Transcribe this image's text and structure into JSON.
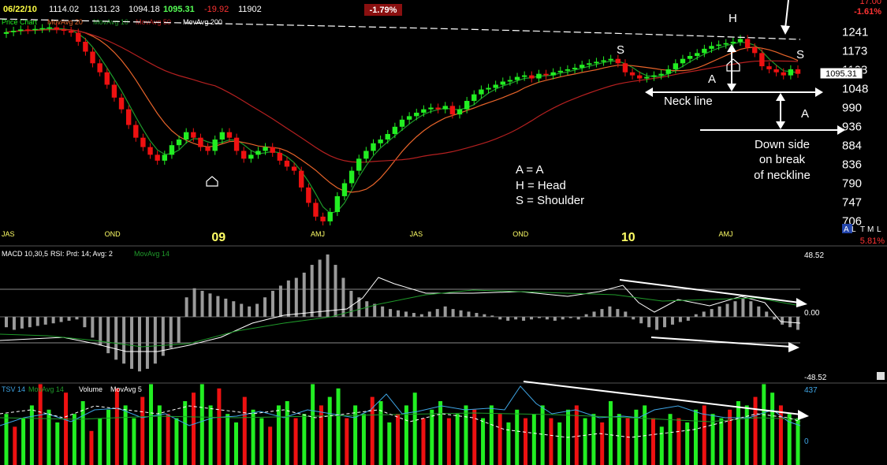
{
  "header": {
    "date": "06/22/10",
    "open": "1114.02",
    "high": "1131.23",
    "low": "1094.18",
    "close": "1095.31",
    "change": "-19.92",
    "volume": "11902",
    "change_pct_badge": "-1.79%",
    "right_top_value": "-1.61%",
    "right_top_clipped": "17.00"
  },
  "price_panel": {
    "legend_prefix": "Price Chart",
    "legend_ma20": "MovAvg 20",
    "legend_ma10": "MovAvg 10",
    "legend_ma50": "MovAvg 50",
    "legend_ma200": "MovAvg 200",
    "last_price_tag": "1095.31",
    "axis_ticks": [
      "1241",
      "1173",
      "1108",
      "1048",
      "990",
      "936",
      "884",
      "836",
      "790",
      "747",
      "706"
    ],
    "x_labels": [
      "JAS",
      "OND",
      "09",
      "AMJ",
      "JAS",
      "OND",
      "10",
      "AMJ"
    ],
    "range_buttons": [
      "A",
      "L",
      "T",
      "M",
      "L"
    ],
    "right_pct": "5.81%",
    "annotations": {
      "s_left": "S",
      "head": "H",
      "s_right": "S",
      "a_left": "A",
      "a_right": "A",
      "neck_line": "Neck line",
      "downside_1": "Down side",
      "downside_2": "on break",
      "downside_3": "of neckline",
      "legend_a": "A = A",
      "legend_h": "H = Head",
      "legend_s": "S = Shoulder"
    }
  },
  "macd_panel": {
    "label_macd": "MACD 10,30,5",
    "label_rsi": "RSI: Prd: 14; Avg: 2",
    "label_ma": "MovAvg 14",
    "axis_top": "48.52",
    "axis_mid": "0.00",
    "axis_bottom": "-48.52"
  },
  "tsv_panel": {
    "label_tsv": "TSV 14",
    "label_ma": "MovAvg 14",
    "label_vol": "Volume",
    "label_vol_ma": "MovAvg 5",
    "axis_top": "437",
    "axis_zero": "0"
  },
  "colors": {
    "up": "#22ee22",
    "down": "#ee1111",
    "ma_green": "#1f9a2a",
    "ma_orange": "#e8642a",
    "ma_red": "#b52020",
    "white": "#ffffff",
    "grey_bar": "#9a9a9a",
    "tsv_cyan": "#3fa6e6",
    "accent_yellow": "#ffff44",
    "accent_green": "#55ff55",
    "badge_bg": "#8a1010"
  },
  "chart_data": [
    {
      "type": "candlestick",
      "title": "",
      "x_ticks": [
        "JAS",
        "OND",
        "09",
        "AMJ",
        "JAS",
        "OND",
        "10",
        "AMJ"
      ],
      "ylim": [
        690,
        1290
      ],
      "y_scale": "log",
      "grid": false,
      "close_series": [
        1240,
        1245,
        1250,
        1248,
        1252,
        1255,
        1258,
        1250,
        1245,
        1238,
        1205,
        1170,
        1130,
        1100,
        1060,
        1020,
        985,
        940,
        905,
        880,
        860,
        845,
        860,
        885,
        900,
        920,
        905,
        880,
        870,
        900,
        920,
        905,
        870,
        850,
        860,
        870,
        880,
        865,
        845,
        830,
        820,
        780,
        745,
        715,
        705,
        725,
        760,
        790,
        820,
        850,
        870,
        890,
        900,
        915,
        935,
        955,
        965,
        975,
        985,
        990,
        985,
        995,
        970,
        985,
        1010,
        1030,
        1045,
        1050,
        1060,
        1070,
        1075,
        1085,
        1090,
        1080,
        1095,
        1090,
        1100,
        1105,
        1110,
        1115,
        1125,
        1130,
        1135,
        1140,
        1145,
        1130,
        1100,
        1090,
        1080,
        1085,
        1090,
        1095,
        1110,
        1130,
        1145,
        1155,
        1165,
        1180,
        1190,
        1195,
        1200,
        1205,
        1215,
        1185,
        1165,
        1120,
        1110,
        1100,
        1090,
        1110,
        1095
      ]
    },
    {
      "type": "bar",
      "title": "",
      "ylim": [
        -48.52,
        48.52
      ],
      "series": [
        {
          "name": "MACD 10,30,5",
          "values": [
            -8,
            -10,
            -9,
            -8,
            -7,
            -6,
            -5,
            -4,
            -3,
            -2,
            -8,
            -16,
            -22,
            -28,
            -33,
            -36,
            -40,
            -42,
            -40,
            -36,
            -30,
            -24,
            -20,
            15,
            22,
            20,
            18,
            16,
            14,
            12,
            10,
            8,
            10,
            15,
            20,
            24,
            28,
            30,
            34,
            40,
            44,
            48,
            40,
            30,
            20,
            15,
            12,
            10,
            8,
            6,
            5,
            4,
            3,
            2,
            4,
            6,
            8,
            6,
            5,
            4,
            3,
            2,
            1,
            -2,
            -3,
            -2,
            -3,
            -2,
            -1,
            -2,
            -3,
            -2,
            -1,
            -2,
            2,
            4,
            6,
            8,
            6,
            4,
            -2,
            -5,
            -8,
            -10,
            -8,
            -6,
            -4,
            -3,
            2,
            4,
            6,
            8,
            10,
            12,
            14,
            12,
            8,
            4,
            -2,
            -6,
            -8,
            -10
          ]
        }
      ]
    },
    {
      "type": "bar",
      "title": "",
      "ylim": [
        0,
        437
      ],
      "series": [
        {
          "name": "Volume",
          "values": [
            60,
            45,
            55,
            70,
            95,
            65,
            50,
            85,
            60,
            75,
            40,
            55,
            65,
            90,
            70,
            55,
            80,
            95,
            70,
            60,
            55,
            75,
            85,
            95,
            70,
            90,
            60,
            50,
            80,
            65,
            55,
            45,
            70,
            75,
            55,
            60,
            95,
            70,
            80,
            90,
            55,
            70,
            60,
            80,
            75,
            50,
            60,
            70,
            85,
            55,
            65,
            75,
            55,
            60,
            70,
            65,
            55,
            70,
            60,
            50,
            65,
            55,
            60,
            70,
            55,
            50,
            65,
            70,
            55,
            60,
            50,
            75,
            60,
            55,
            65,
            70,
            55,
            45,
            60,
            55,
            50,
            65,
            70,
            60,
            55,
            65,
            75,
            70,
            80,
            95,
            85,
            70,
            60,
            55
          ]
        }
      ]
    }
  ]
}
